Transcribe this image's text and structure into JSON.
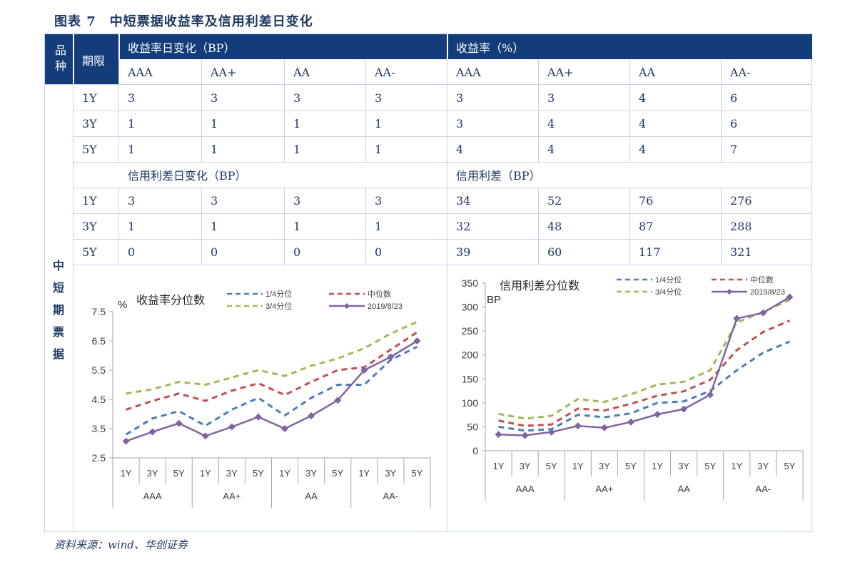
{
  "title": "图表 7　中短票据收益率及信用利差日变化",
  "source": "资料来源：wind、华创证券",
  "table": {
    "product_header": "品种",
    "term_header": "期限",
    "yield_change_header": "收益率日变化（BP）",
    "yield_header": "收益率（%）",
    "spread_change_header": "信用利差日变化（BP）",
    "spread_header": "信用利差（BP）",
    "product_name": "中短期票据",
    "ratings": [
      "AAA",
      "AA+",
      "AA",
      "AA-"
    ],
    "yield_rows": [
      {
        "term": "1Y",
        "change": [
          "3",
          "3",
          "3",
          "3"
        ],
        "level": [
          "3",
          "3",
          "4",
          "6"
        ]
      },
      {
        "term": "3Y",
        "change": [
          "1",
          "1",
          "1",
          "1"
        ],
        "level": [
          "3",
          "4",
          "4",
          "6"
        ]
      },
      {
        "term": "5Y",
        "change": [
          "1",
          "1",
          "1",
          "1"
        ],
        "level": [
          "4",
          "4",
          "4",
          "7"
        ]
      }
    ],
    "spread_rows": [
      {
        "term": "1Y",
        "change": [
          "3",
          "3",
          "3",
          "3"
        ],
        "level": [
          "34",
          "52",
          "76",
          "276"
        ]
      },
      {
        "term": "3Y",
        "change": [
          "1",
          "1",
          "1",
          "1"
        ],
        "level": [
          "32",
          "48",
          "87",
          "288"
        ]
      },
      {
        "term": "5Y",
        "change": [
          "0",
          "0",
          "0",
          "0"
        ],
        "level": [
          "39",
          "60",
          "117",
          "321"
        ]
      }
    ]
  },
  "chart_data": [
    {
      "type": "line",
      "title": "收益率分位数",
      "ylabel": "%",
      "ylim": [
        2.5,
        7.5
      ],
      "yticks": [
        2.5,
        3.5,
        4.5,
        5.5,
        6.5,
        7.5
      ],
      "ytick_labels": [
        "2.5",
        "3.5",
        "4.5",
        "5.5",
        "6.5",
        "7.5"
      ],
      "categories": [
        "1Y",
        "3Y",
        "5Y",
        "1Y",
        "3Y",
        "5Y",
        "1Y",
        "3Y",
        "5Y",
        "1Y",
        "3Y",
        "5Y"
      ],
      "groups": [
        "AAA",
        "AA+",
        "AA",
        "AA-"
      ],
      "legend": "top",
      "series": [
        {
          "name": "1/4分位",
          "color": "#4a7ebb",
          "dash": true,
          "marker": false,
          "values": [
            3.3,
            3.85,
            4.1,
            3.6,
            4.15,
            4.55,
            3.95,
            4.55,
            5.0,
            5.0,
            5.85,
            6.3
          ]
        },
        {
          "name": "中位数",
          "color": "#c0504d",
          "dash": true,
          "marker": false,
          "values": [
            4.15,
            4.45,
            4.7,
            4.45,
            4.8,
            5.05,
            4.65,
            5.1,
            5.5,
            5.6,
            6.2,
            6.8
          ]
        },
        {
          "name": "3/4分位",
          "color": "#9bbb59",
          "dash": true,
          "marker": false,
          "values": [
            4.7,
            4.85,
            5.1,
            5.0,
            5.25,
            5.5,
            5.3,
            5.65,
            5.9,
            6.25,
            6.75,
            7.15
          ]
        },
        {
          "name": "2019/8/23",
          "color": "#8064a2",
          "dash": false,
          "marker": true,
          "values": [
            3.07,
            3.39,
            3.68,
            3.25,
            3.56,
            3.9,
            3.5,
            3.94,
            4.47,
            5.5,
            5.95,
            6.5
          ]
        }
      ]
    },
    {
      "type": "line",
      "title": "信用利差分位数",
      "ylabel": "BP",
      "ylim": [
        0,
        350
      ],
      "yticks": [
        0,
        50,
        100,
        150,
        200,
        250,
        300,
        350
      ],
      "ytick_labels": [
        "0",
        "50",
        "100",
        "150",
        "200",
        "250",
        "300",
        "350"
      ],
      "categories": [
        "1Y",
        "3Y",
        "5Y",
        "1Y",
        "3Y",
        "5Y",
        "1Y",
        "3Y",
        "5Y",
        "1Y",
        "3Y",
        "5Y"
      ],
      "groups": [
        "AAA",
        "AA+",
        "AA",
        "AA-"
      ],
      "legend": "top",
      "series": [
        {
          "name": "1/4分位",
          "color": "#4a7ebb",
          "dash": true,
          "marker": false,
          "values": [
            50,
            42,
            45,
            75,
            70,
            78,
            100,
            103,
            125,
            168,
            205,
            228
          ]
        },
        {
          "name": "中位数",
          "color": "#c0504d",
          "dash": true,
          "marker": false,
          "values": [
            63,
            52,
            55,
            88,
            84,
            98,
            115,
            124,
            148,
            210,
            248,
            272
          ]
        },
        {
          "name": "3/4分位",
          "color": "#9bbb59",
          "dash": true,
          "marker": false,
          "values": [
            77,
            67,
            73,
            108,
            102,
            118,
            138,
            144,
            168,
            268,
            290,
            315
          ]
        },
        {
          "name": "2019/8/23",
          "color": "#8064a2",
          "dash": false,
          "marker": true,
          "values": [
            34,
            32,
            39,
            52,
            48,
            60,
            76,
            87,
            117,
            276,
            288,
            321
          ]
        }
      ]
    }
  ]
}
